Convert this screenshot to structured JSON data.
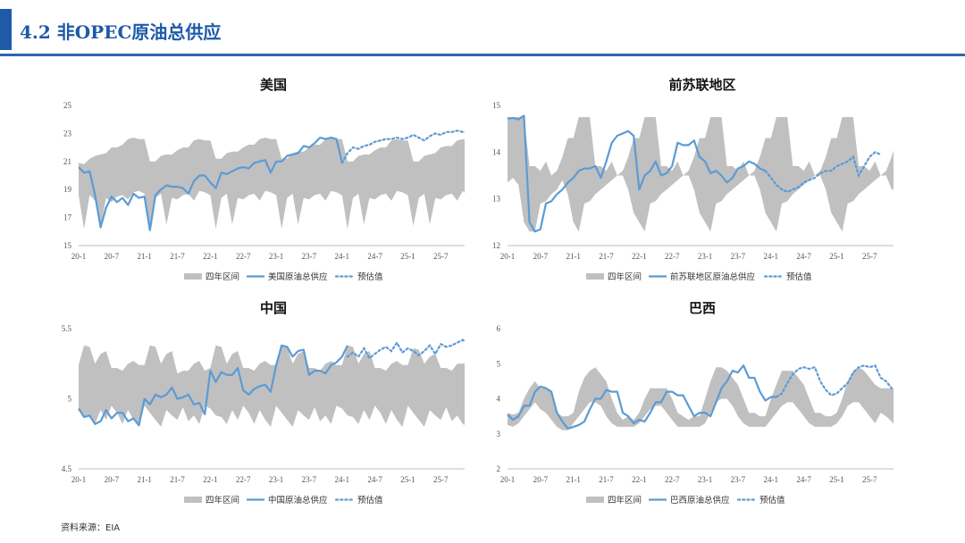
{
  "header": {
    "title": "4.2 非OPEC原油总供应"
  },
  "source": "资料来源：EIA",
  "colors": {
    "band": "#c0c0c0",
    "line": "#5b9bd5",
    "accent": "#1e5aa8"
  },
  "legend_labels": [
    "四年区间",
    "原油总供应",
    "预估值"
  ],
  "chart_data": [
    {
      "type": "area",
      "title": "美国",
      "ylim": [
        15,
        25
      ],
      "yticks": [
        15,
        17,
        19,
        21,
        23,
        25
      ],
      "x_labels": [
        "20-1",
        "20-7",
        "21-1",
        "21-7",
        "22-1",
        "22-7",
        "23-1",
        "23-7",
        "24-1",
        "24-7",
        "25-1",
        "25-7"
      ],
      "series": [
        {
          "name": "四年区间",
          "kind": "band",
          "upper": [
            20.9,
            20.8,
            21.2,
            21.4,
            21.5,
            21.6,
            22.0,
            22.0,
            22.2,
            22.6,
            22.7,
            22.6,
            22.6,
            21.0,
            21.0,
            21.4,
            21.5,
            21.5,
            21.8,
            22.0,
            22.0,
            22.5,
            22.6,
            22.5,
            22.5,
            21.2,
            21.2,
            21.6,
            21.7,
            21.7,
            22.0,
            22.2,
            22.2,
            22.6,
            22.7,
            22.6,
            22.6,
            21.2,
            21.2,
            21.6,
            21.7,
            21.7,
            22.0,
            22.2,
            22.2,
            22.6,
            22.7,
            22.6,
            22.6,
            21.0,
            21.0,
            21.4,
            21.5,
            21.5,
            21.8,
            22.0,
            22.0,
            22.5,
            22.6,
            22.5,
            22.5,
            21.0,
            21.0,
            21.4,
            21.5,
            21.6,
            22.0,
            22.1,
            22.1,
            22.5,
            22.6,
            22.5
          ],
          "lower": [
            18.6,
            16.2,
            18.6,
            18.2,
            16.3,
            18.4,
            18.1,
            18.5,
            18.6,
            18.3,
            18.8,
            18.9,
            18.7,
            16.2,
            18.4,
            18.7,
            16.5,
            18.4,
            18.3,
            18.6,
            18.7,
            18.2,
            18.9,
            18.8,
            18.6,
            16.2,
            18.4,
            18.7,
            16.5,
            18.4,
            18.3,
            18.6,
            18.7,
            18.2,
            18.9,
            18.8,
            18.6,
            16.2,
            18.4,
            18.7,
            16.5,
            18.4,
            18.3,
            18.6,
            18.7,
            18.2,
            18.9,
            18.8,
            18.6,
            16.2,
            18.4,
            18.7,
            16.5,
            18.4,
            18.3,
            18.6,
            18.7,
            18.2,
            18.9,
            18.8,
            18.6,
            16.4,
            18.4,
            18.7,
            16.5,
            18.4,
            18.3,
            18.6,
            18.7,
            18.2,
            18.9,
            18.5
          ]
        },
        {
          "name": "美国原油总供应",
          "kind": "line",
          "values": [
            20.6,
            20.2,
            20.3,
            18.6,
            16.3,
            17.7,
            18.5,
            18.1,
            18.4,
            17.9,
            18.7,
            18.4,
            18.5,
            16.1,
            18.6,
            19.0,
            19.3,
            19.2,
            19.2,
            19.1,
            18.7,
            19.6,
            20.0,
            20.0,
            19.5,
            19.1,
            20.2,
            20.1,
            20.3,
            20.5,
            20.6,
            20.5,
            20.9,
            21.0,
            21.1,
            20.2,
            21.0,
            21.0,
            21.4,
            21.5,
            21.6,
            22.1,
            22.0,
            22.3,
            22.7,
            22.6,
            22.7,
            22.6,
            20.9
          ]
        },
        {
          "name": "预估值",
          "kind": "dotted",
          "values": [
            20.9,
            21.6,
            22.0,
            21.9,
            22.1,
            22.2,
            22.4,
            22.5,
            22.6,
            22.6,
            22.7,
            22.6,
            22.7,
            22.9,
            22.7,
            22.5,
            22.8,
            23.0,
            22.9,
            23.1,
            23.1,
            23.2,
            23.1,
            23.2,
            23.3,
            23.1,
            23.3,
            23.5,
            23.5
          ]
        }
      ]
    },
    {
      "type": "area",
      "title": "前苏联地区",
      "ylim": [
        12,
        15
      ],
      "yticks": [
        12,
        13,
        14,
        15
      ],
      "x_labels": [
        "20-1",
        "20-7",
        "21-1",
        "21-7",
        "22-1",
        "22-7",
        "23-1",
        "23-7",
        "24-1",
        "24-7",
        "25-1",
        "25-7"
      ],
      "series": [
        {
          "name": "四年区间",
          "kind": "band",
          "upper": [
            14.75,
            14.75,
            14.75,
            14.78,
            13.7,
            13.7,
            13.6,
            13.8,
            13.5,
            13.6,
            13.9,
            14.3,
            14.3,
            14.75,
            14.75,
            14.75,
            13.7,
            13.7,
            13.6,
            13.8,
            13.5,
            13.6,
            13.9,
            14.3,
            14.3,
            14.75,
            14.75,
            14.75,
            13.7,
            13.7,
            13.6,
            13.8,
            13.5,
            13.6,
            13.9,
            14.3,
            14.3,
            14.75,
            14.75,
            14.75,
            13.7,
            13.7,
            13.6,
            13.8,
            13.5,
            13.6,
            13.9,
            14.3,
            14.3,
            14.75,
            14.75,
            14.75,
            13.7,
            13.7,
            13.6,
            13.8,
            13.5,
            13.6,
            13.9,
            14.3,
            14.3,
            14.75,
            14.75,
            14.75,
            13.7,
            13.7,
            13.6,
            13.8,
            13.5,
            13.6,
            13.9,
            14.3,
            14.33
          ],
          "lower": [
            13.35,
            13.45,
            13.3,
            12.5,
            12.3,
            12.3,
            12.9,
            12.95,
            13.1,
            13.2,
            13.4,
            13.1,
            12.5,
            12.3,
            12.9,
            12.95,
            13.1,
            13.2,
            13.3,
            13.4,
            13.5,
            13.5,
            13.2,
            12.7,
            12.5,
            12.3,
            12.9,
            12.95,
            13.1,
            13.2,
            13.3,
            13.4,
            13.5,
            13.5,
            13.2,
            12.7,
            12.5,
            12.3,
            12.9,
            12.95,
            13.1,
            13.2,
            13.3,
            13.4,
            13.5,
            13.5,
            13.2,
            12.7,
            12.5,
            12.3,
            12.9,
            12.95,
            13.1,
            13.2,
            13.3,
            13.4,
            13.5,
            13.5,
            13.2,
            12.7,
            12.5,
            12.3,
            12.9,
            12.95,
            13.1,
            13.2,
            13.3,
            13.4,
            13.5,
            13.5,
            13.2,
            13.2,
            13.2
          ]
        },
        {
          "name": "前苏联地区原油总供应",
          "kind": "line",
          "values": [
            14.72,
            14.73,
            14.7,
            14.78,
            12.5,
            12.3,
            12.35,
            12.9,
            12.95,
            13.1,
            13.2,
            13.35,
            13.45,
            13.6,
            13.65,
            13.65,
            13.7,
            13.45,
            13.8,
            14.2,
            14.35,
            14.4,
            14.45,
            14.35,
            13.2,
            13.5,
            13.6,
            13.8,
            13.5,
            13.55,
            13.7,
            14.2,
            14.15,
            14.15,
            14.25,
            13.9,
            13.8,
            13.55,
            13.6,
            13.5,
            13.35,
            13.45,
            13.65,
            13.7,
            13.8,
            13.75,
            13.65,
            13.6
          ]
        },
        {
          "name": "预估值",
          "kind": "dotted",
          "values": [
            13.6,
            13.45,
            13.3,
            13.2,
            13.15,
            13.2,
            13.25,
            13.35,
            13.4,
            13.45,
            13.55,
            13.6,
            13.6,
            13.7,
            13.75,
            13.8,
            13.9,
            13.5,
            13.7,
            13.9,
            14.0,
            13.95
          ]
        }
      ]
    },
    {
      "type": "area",
      "title": "中国",
      "ylim": [
        4.5,
        5.5
      ],
      "yticks": [
        4.5,
        5,
        5.5
      ],
      "x_labels": [
        "20-1",
        "20-7",
        "21-1",
        "21-7",
        "22-1",
        "22-7",
        "23-1",
        "23-7",
        "24-1",
        "24-7",
        "25-1",
        "25-7"
      ],
      "series": [
        {
          "name": "四年区间",
          "kind": "band",
          "upper": [
            5.24,
            5.38,
            5.37,
            5.25,
            5.32,
            5.34,
            5.22,
            5.22,
            5.2,
            5.25,
            5.27,
            5.24,
            5.24,
            5.38,
            5.37,
            5.25,
            5.32,
            5.34,
            5.18,
            5.2,
            5.2,
            5.25,
            5.27,
            5.2,
            5.22,
            5.38,
            5.37,
            5.25,
            5.32,
            5.34,
            5.22,
            5.22,
            5.2,
            5.25,
            5.27,
            5.24,
            5.24,
            5.38,
            5.37,
            5.25,
            5.32,
            5.34,
            5.22,
            5.22,
            5.2,
            5.25,
            5.27,
            5.24,
            5.24,
            5.38,
            5.37,
            5.25,
            5.32,
            5.34,
            5.22,
            5.22,
            5.2,
            5.25,
            5.27,
            5.24,
            5.24,
            5.36,
            5.35,
            5.25,
            5.3,
            5.32,
            5.22,
            5.22,
            5.2,
            5.25,
            5.25,
            5.26
          ],
          "lower": [
            4.93,
            4.88,
            4.87,
            4.82,
            4.92,
            4.85,
            4.95,
            4.9,
            4.82,
            4.92,
            4.85,
            4.8,
            4.95,
            4.9,
            4.85,
            4.8,
            4.92,
            4.88,
            4.85,
            4.94,
            4.84,
            4.88,
            4.82,
            4.95,
            4.93,
            4.88,
            4.87,
            4.82,
            4.92,
            4.85,
            4.95,
            4.9,
            4.82,
            4.92,
            4.85,
            4.8,
            4.95,
            4.9,
            4.85,
            4.8,
            4.92,
            4.88,
            4.85,
            4.94,
            4.84,
            4.88,
            4.82,
            4.95,
            4.93,
            4.88,
            4.87,
            4.82,
            4.92,
            4.85,
            4.95,
            4.9,
            4.82,
            4.92,
            4.85,
            4.8,
            4.95,
            4.9,
            4.85,
            4.8,
            4.92,
            4.88,
            4.85,
            4.94,
            4.84,
            4.88,
            4.82,
            4.8
          ]
        },
        {
          "name": "中国原油总供应",
          "kind": "line",
          "values": [
            4.93,
            4.87,
            4.88,
            4.82,
            4.84,
            4.92,
            4.86,
            4.9,
            4.9,
            4.84,
            4.86,
            4.81,
            5.0,
            4.96,
            5.03,
            5.01,
            5.03,
            5.08,
            5.0,
            5.01,
            5.03,
            4.96,
            4.97,
            4.89,
            5.2,
            5.12,
            5.19,
            5.17,
            5.17,
            5.22,
            5.06,
            5.03,
            5.07,
            5.09,
            5.1,
            5.05,
            5.24,
            5.38,
            5.37,
            5.3,
            5.34,
            5.35,
            5.17,
            5.2,
            5.2,
            5.18,
            5.24,
            5.26,
            5.3,
            5.38
          ]
        },
        {
          "name": "预估值",
          "kind": "dotted",
          "values": [
            5.3,
            5.33,
            5.3,
            5.36,
            5.29,
            5.32,
            5.35,
            5.37,
            5.34,
            5.4,
            5.33,
            5.36,
            5.34,
            5.31,
            5.34,
            5.38,
            5.32,
            5.39,
            5.37,
            5.38,
            5.4,
            5.42,
            5.39
          ]
        }
      ]
    },
    {
      "type": "area",
      "title": "巴西",
      "ylim": [
        2,
        6
      ],
      "yticks": [
        2,
        3,
        4,
        5,
        6
      ],
      "x_labels": [
        "20-1",
        "20-7",
        "21-1",
        "21-7",
        "22-1",
        "22-7",
        "23-1",
        "23-7",
        "24-1",
        "24-7",
        "25-1",
        "25-7"
      ],
      "series": [
        {
          "name": "四年区间",
          "kind": "band",
          "upper": [
            3.6,
            3.55,
            3.6,
            4.0,
            4.3,
            4.5,
            4.3,
            4.3,
            4.2,
            3.6,
            3.5,
            3.5,
            3.6,
            4.2,
            4.6,
            4.8,
            4.9,
            4.7,
            4.5,
            4.0,
            3.6,
            3.4,
            3.5,
            3.4,
            3.6,
            4.0,
            4.3,
            4.3,
            4.3,
            4.3,
            4.0,
            3.6,
            3.5,
            3.4,
            3.5,
            3.5,
            4.0,
            4.5,
            4.9,
            4.9,
            4.8,
            4.6,
            4.4,
            4.0,
            3.6,
            3.6,
            3.5,
            3.5,
            4.0,
            4.4,
            4.8,
            4.8,
            4.8,
            4.6,
            4.4,
            4.0,
            3.6,
            3.6,
            3.5,
            3.5,
            3.6,
            4.0,
            4.5,
            4.8,
            4.9,
            4.8,
            4.6,
            4.4,
            4.3,
            4.3,
            4.3,
            4.32
          ],
          "lower": [
            3.25,
            3.2,
            3.3,
            3.5,
            3.7,
            3.9,
            3.7,
            3.6,
            3.4,
            3.2,
            3.1,
            3.1,
            3.3,
            3.5,
            3.7,
            3.9,
            3.9,
            3.8,
            3.5,
            3.3,
            3.2,
            3.2,
            3.2,
            3.2,
            3.3,
            3.5,
            3.7,
            3.8,
            3.8,
            3.6,
            3.4,
            3.2,
            3.2,
            3.2,
            3.2,
            3.2,
            3.3,
            3.6,
            3.9,
            4.0,
            4.0,
            3.8,
            3.5,
            3.3,
            3.2,
            3.2,
            3.2,
            3.2,
            3.4,
            3.6,
            3.8,
            3.9,
            3.9,
            3.7,
            3.5,
            3.3,
            3.2,
            3.2,
            3.2,
            3.2,
            3.3,
            3.5,
            3.8,
            3.9,
            3.9,
            3.7,
            3.5,
            3.3,
            3.6,
            3.5,
            3.35,
            3.15
          ]
        },
        {
          "name": "巴西原油总供应",
          "kind": "line",
          "values": [
            3.55,
            3.4,
            3.5,
            3.8,
            3.8,
            4.2,
            4.35,
            4.3,
            4.2,
            3.6,
            3.35,
            3.15,
            3.2,
            3.25,
            3.35,
            3.7,
            4.0,
            4.0,
            4.25,
            4.2,
            4.2,
            3.6,
            3.5,
            3.3,
            3.4,
            3.35,
            3.6,
            3.9,
            3.9,
            4.2,
            4.2,
            4.1,
            4.1,
            3.8,
            3.5,
            3.6,
            3.6,
            3.5,
            3.9,
            4.3,
            4.5,
            4.8,
            4.75,
            4.95,
            4.6,
            4.6,
            4.2,
            3.95,
            4.05,
            4.05
          ]
        },
        {
          "name": "预估值",
          "kind": "dotted",
          "values": [
            4.05,
            4.15,
            4.45,
            4.7,
            4.85,
            4.9,
            4.85,
            4.9,
            4.5,
            4.25,
            4.1,
            4.15,
            4.3,
            4.45,
            4.75,
            4.9,
            4.95,
            4.9,
            4.95,
            4.6,
            4.5,
            4.3
          ]
        }
      ]
    }
  ]
}
